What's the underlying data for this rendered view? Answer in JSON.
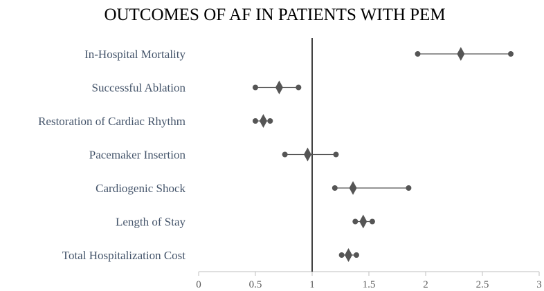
{
  "chart_data": {
    "type": "forest",
    "title": "OUTCOMES OF AF IN PATIENTS WITH PEM",
    "xlabel": "",
    "ylabel": "",
    "xlim": [
      0,
      3
    ],
    "xticks": [
      0,
      0.5,
      1,
      1.5,
      2,
      2.5,
      3
    ],
    "xtick_labels": [
      "0",
      "0.5",
      "1",
      "1.5",
      "2",
      "2.5",
      "3"
    ],
    "reference_line": 1,
    "grid": false,
    "colors": {
      "marker": "#555555",
      "reference": "#000000",
      "axis": "#bfbfbf",
      "label": "#44546a"
    },
    "rows": [
      {
        "label": "In-Hospital Mortality",
        "estimate": 2.31,
        "lower": 1.93,
        "upper": 2.75
      },
      {
        "label": "Successful Ablation",
        "estimate": 0.71,
        "lower": 0.5,
        "upper": 0.88
      },
      {
        "label": "Restoration of Cardiac Rhythm",
        "estimate": 0.57,
        "lower": 0.5,
        "upper": 0.63
      },
      {
        "label": "Pacemaker Insertion",
        "estimate": 0.96,
        "lower": 0.76,
        "upper": 1.21
      },
      {
        "label": "Cardiogenic Shock",
        "estimate": 1.36,
        "lower": 1.2,
        "upper": 1.85
      },
      {
        "label": "Length of Stay",
        "estimate": 1.45,
        "lower": 1.38,
        "upper": 1.53
      },
      {
        "label": "Total Hospitalization Cost",
        "estimate": 1.32,
        "lower": 1.26,
        "upper": 1.39
      }
    ]
  }
}
